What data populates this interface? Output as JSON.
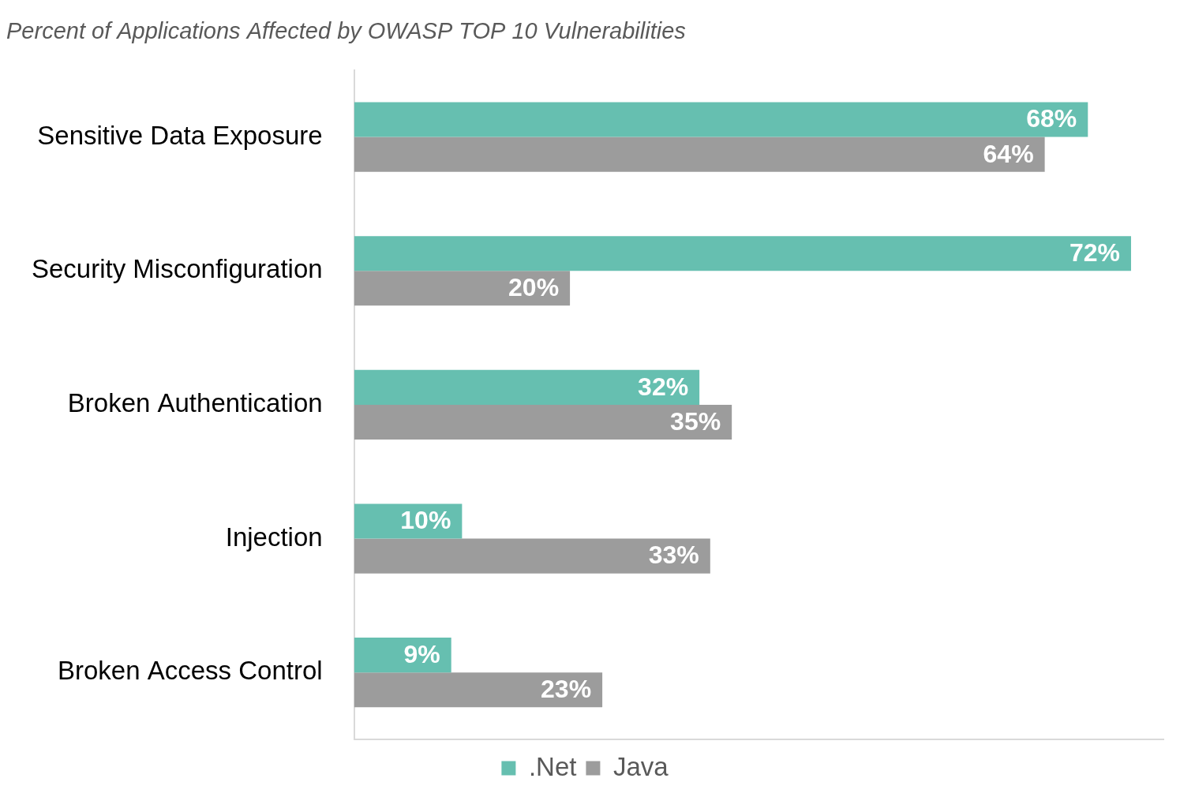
{
  "chart_data": {
    "type": "bar",
    "title": "Percent of Applications Affected by OWASP TOP 10 Vulnerabilities",
    "orientation": "horizontal",
    "categories": [
      "Sensitive Data Exposure",
      "Security Misconfiguration",
      "Broken Authentication",
      "Injection",
      "Broken Access Control"
    ],
    "series": [
      {
        "name": ".Net",
        "color": "#66bfb0",
        "values": [
          68,
          72,
          32,
          10,
          9
        ],
        "value_labels": [
          "68%",
          "72%",
          "32%",
          "10%",
          "9%"
        ]
      },
      {
        "name": "Java",
        "color": "#9c9c9c",
        "values": [
          64,
          20,
          35,
          33,
          23
        ],
        "value_labels": [
          "64%",
          "20%",
          "35%",
          "33%",
          "23%"
        ]
      }
    ],
    "xlim": [
      0,
      75
    ],
    "grid": false,
    "legend": "bottom",
    "data_labels": true,
    "tick_labels": "y"
  }
}
